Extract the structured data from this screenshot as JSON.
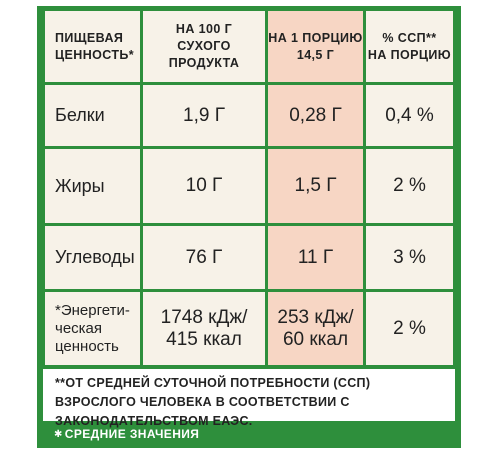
{
  "table": {
    "headers": {
      "col1": "ПИЩЕВАЯ ЦЕННОСТЬ*",
      "col2": "НА 100 Г СУХОГО ПРОДУКТА",
      "col3_line1": "НА 1 ПОРЦИЮ",
      "col3_line2": "14,5 Г",
      "col4_line1": "% ССП**",
      "col4_line2": "НА ПОРЦИЮ"
    },
    "rows": [
      {
        "name": "Белки",
        "per100": "1,9 Г",
        "perServing": "0,28 Г",
        "percent": "0,4 %"
      },
      {
        "name": "Жиры",
        "per100": "10 Г",
        "perServing": "1,5 Г",
        "percent": "2 %"
      },
      {
        "name": "Углеводы",
        "per100": "76 Г",
        "perServing": "11 Г",
        "percent": "3 %"
      }
    ],
    "energy": {
      "name_line1": "*Энергети-",
      "name_line2": "ческая",
      "name_line3": "ценность",
      "per100_line1": "1748 кДж/",
      "per100_line2": "415 ккал",
      "perServing_line1": "253 кДж/",
      "perServing_line2": "60 ккал",
      "percent": "2 %"
    }
  },
  "footnote": "**ОТ СРЕДНЕЙ СУТОЧНОЙ ПОТРЕБНОСТИ (ССП) ВЗРОСЛОГО ЧЕЛОВЕКА В СООТВЕТСТВИИ С ЗАКОНОДАТЕЛЬСТВОМ ЕАЭС.",
  "average_note": "СРЕДНИЕ ЗНАЧЕНИЯ",
  "colors": {
    "border": "#2e8f3c",
    "cell": "#f7f2e8",
    "highlight": "#f7d6c4"
  }
}
